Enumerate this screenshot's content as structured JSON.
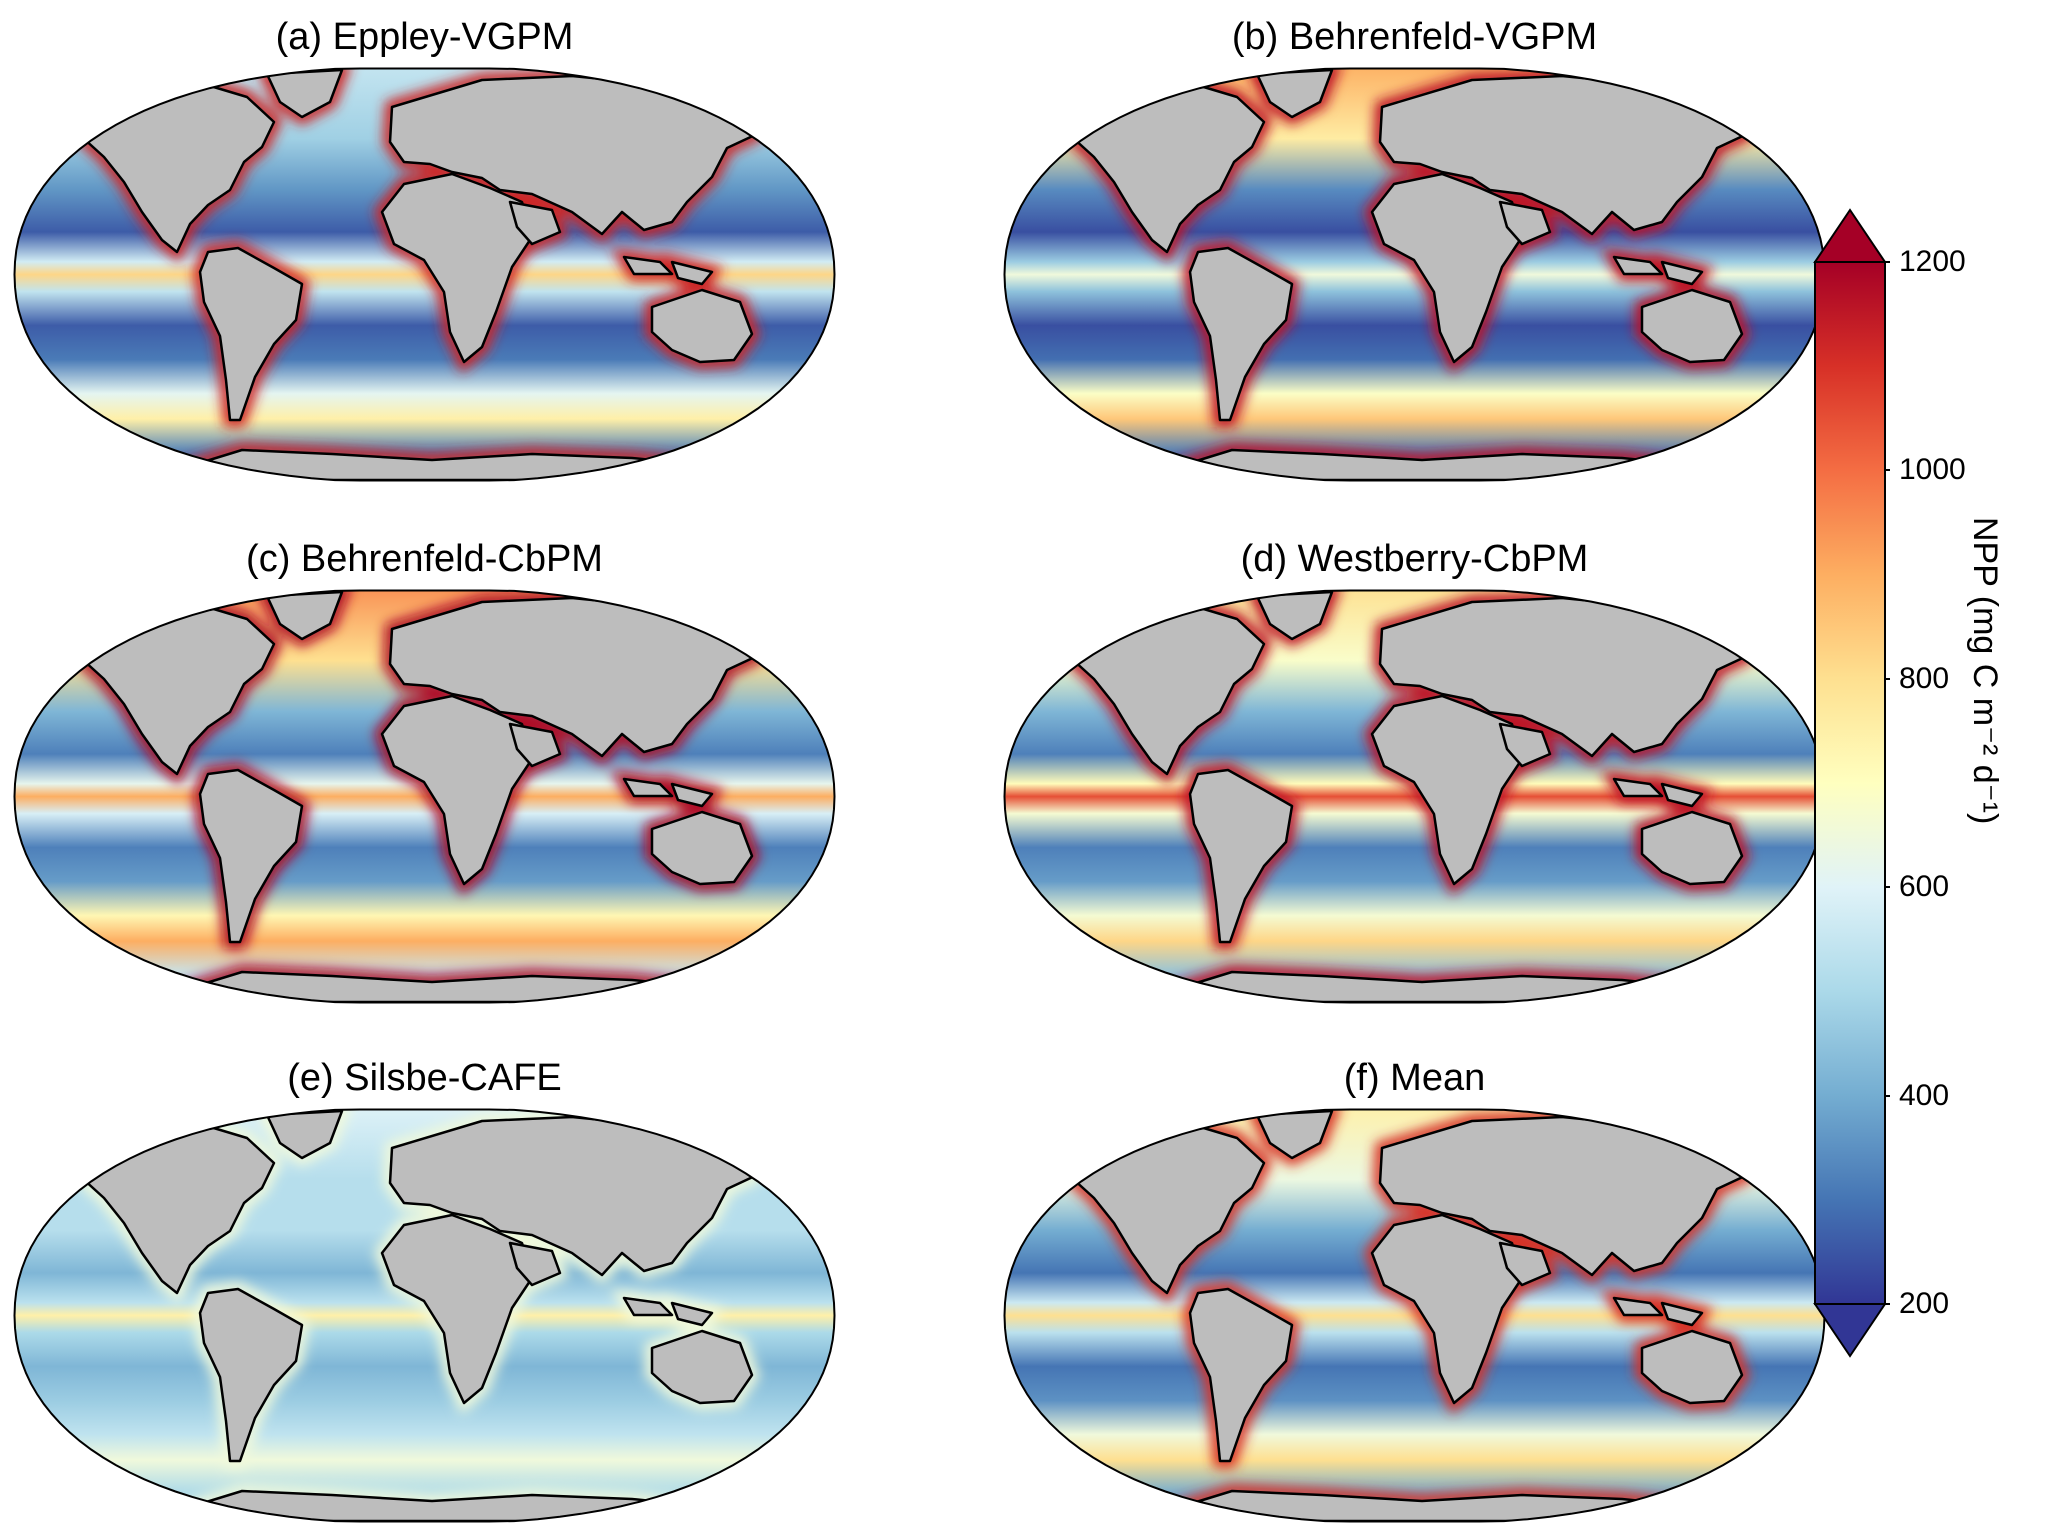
{
  "figure": {
    "panels": [
      {
        "id": "a",
        "title": "(a) Eppley-VGPM"
      },
      {
        "id": "b",
        "title": "(b) Behrenfeld-VGPM"
      },
      {
        "id": "c",
        "title": "(c) Behrenfeld-CbPM"
      },
      {
        "id": "d",
        "title": "(d) Westberry-CbPM"
      },
      {
        "id": "e",
        "title": "(e) Silsbe-CAFE"
      },
      {
        "id": "f",
        "title": "(f) Mean"
      }
    ],
    "colorbar": {
      "label": "NPP (mg C m⁻² d⁻¹)",
      "ticks": [
        "1200",
        "1000",
        "800",
        "600",
        "400",
        "200"
      ],
      "range": [
        200,
        1200
      ],
      "extend": "both",
      "colormap": "RdYlBu_r",
      "colors": [
        "#313695",
        "#4575b4",
        "#74add1",
        "#abd9e9",
        "#e0f3f8",
        "#ffffbf",
        "#fee090",
        "#fdae61",
        "#f46d43",
        "#d73027",
        "#a50026"
      ]
    },
    "land_color": "#bdbdbd",
    "projection": "Robinson"
  }
}
